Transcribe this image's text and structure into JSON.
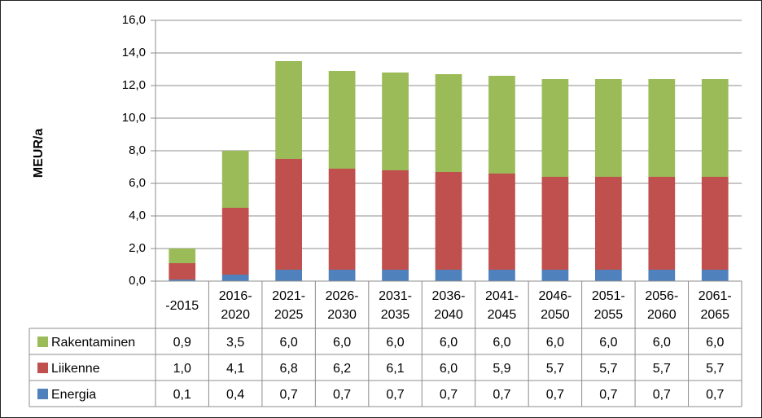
{
  "chart_data": {
    "type": "bar",
    "stacked": true,
    "categories": [
      [
        "-2015"
      ],
      [
        "2016-",
        "2020"
      ],
      [
        "2021-",
        "2025"
      ],
      [
        "2026-",
        "2030"
      ],
      [
        "2031-",
        "2035"
      ],
      [
        "2036-",
        "2040"
      ],
      [
        "2041-",
        "2045"
      ],
      [
        "2046-",
        "2050"
      ],
      [
        "2051-",
        "2055"
      ],
      [
        "2056-",
        "2060"
      ],
      [
        "2061-",
        "2065"
      ]
    ],
    "ylabel": "MEUR/a",
    "ylim": [
      0,
      16
    ],
    "yticks": [
      "0,0",
      "2,0",
      "4,0",
      "6,0",
      "8,0",
      "10,0",
      "12,0",
      "14,0",
      "16,0"
    ],
    "grid": true,
    "legend": "data-table",
    "series": [
      {
        "name": "Energia",
        "color": "#4f81bd",
        "values": [
          0.1,
          0.4,
          0.7,
          0.7,
          0.7,
          0.7,
          0.7,
          0.7,
          0.7,
          0.7,
          0.7
        ],
        "labels": [
          "0,1",
          "0,4",
          "0,7",
          "0,7",
          "0,7",
          "0,7",
          "0,7",
          "0,7",
          "0,7",
          "0,7",
          "0,7"
        ]
      },
      {
        "name": "Liikenne",
        "color": "#c0504d",
        "values": [
          1.0,
          4.1,
          6.8,
          6.2,
          6.1,
          6.0,
          5.9,
          5.7,
          5.7,
          5.7,
          5.7
        ],
        "labels": [
          "1,0",
          "4,1",
          "6,8",
          "6,2",
          "6,1",
          "6,0",
          "5,9",
          "5,7",
          "5,7",
          "5,7",
          "5,7"
        ]
      },
      {
        "name": "Rakentaminen",
        "color": "#9bbb59",
        "values": [
          0.9,
          3.5,
          6.0,
          6.0,
          6.0,
          6.0,
          6.0,
          6.0,
          6.0,
          6.0,
          6.0
        ],
        "labels": [
          "0,9",
          "3,5",
          "6,0",
          "6,0",
          "6,0",
          "6,0",
          "6,0",
          "6,0",
          "6,0",
          "6,0",
          "6,0"
        ]
      }
    ],
    "table_order": [
      "Rakentaminen",
      "Liikenne",
      "Energia"
    ]
  }
}
